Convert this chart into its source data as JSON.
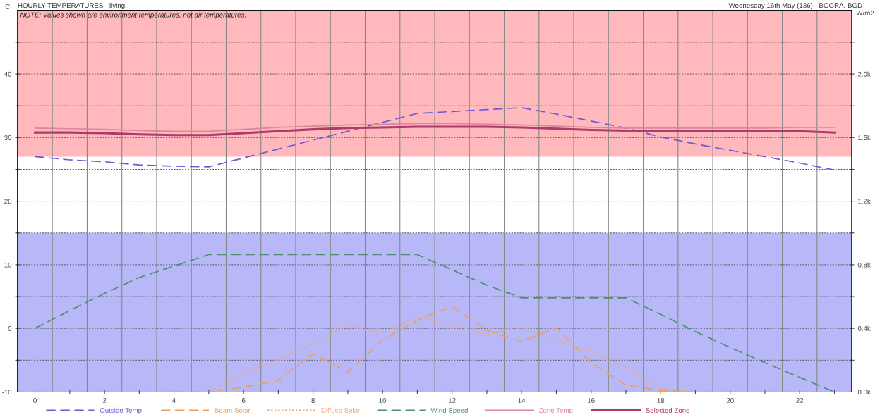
{
  "chart_data": {
    "type": "line",
    "title": "HOURLY TEMPERATURES - living",
    "subtitle": "Wednesday 16th May (136) - BOGRA, BGD",
    "ylabel": "C",
    "y2label": "W/m2",
    "annotations": [
      "NOTE: Values shown are environment temperatures, not air temperatures."
    ],
    "x": [
      0,
      1,
      2,
      3,
      4,
      5,
      6,
      7,
      8,
      9,
      10,
      11,
      12,
      13,
      14,
      15,
      16,
      17,
      18,
      19,
      20,
      21,
      22,
      23
    ],
    "xlim": [
      -0.5,
      23.5
    ],
    "xticks": [
      0,
      {
        "value": 1,
        "label": null
      },
      2,
      {
        "value": 3,
        "label": null
      },
      4,
      {
        "value": 5,
        "label": null
      },
      6,
      {
        "value": 7,
        "label": null
      },
      8,
      {
        "value": 9,
        "label": null
      },
      10,
      {
        "value": 11,
        "label": null
      },
      12,
      {
        "value": 13,
        "label": null
      },
      14,
      {
        "value": 15,
        "label": null
      },
      16,
      {
        "value": 17,
        "label": null
      },
      18,
      {
        "value": 19,
        "label": null
      },
      20,
      {
        "value": 21,
        "label": null
      },
      22,
      {
        "value": 23,
        "label": null
      }
    ],
    "ylim": [
      -10,
      50
    ],
    "yticks": [
      -10,
      {
        "value": -5,
        "label": null
      },
      0,
      {
        "value": 5,
        "label": null
      },
      10,
      {
        "value": 15,
        "label": null
      },
      20,
      {
        "value": 25,
        "label": null
      },
      30,
      {
        "value": 35,
        "label": null
      },
      40,
      {
        "value": 45,
        "label": null
      }
    ],
    "y2lim": [
      0,
      2400
    ],
    "y2ticks": [
      {
        "value": 0,
        "label": "0.0k"
      },
      {
        "value": 200,
        "label": null
      },
      {
        "value": 400,
        "label": "0.4k"
      },
      {
        "value": 600,
        "label": null
      },
      {
        "value": 800,
        "label": "0.8k"
      },
      {
        "value": 1000,
        "label": null
      },
      {
        "value": 1200,
        "label": "1.2k"
      },
      {
        "value": 1400,
        "label": null
      },
      {
        "value": 1600,
        "label": "1.6k"
      },
      {
        "value": 1800,
        "label": null
      },
      {
        "value": 2000,
        "label": "2.0k"
      },
      {
        "value": 2200,
        "label": null
      }
    ],
    "bands": [
      {
        "axis": "y",
        "from": 27,
        "to": 50,
        "color": "#ffb8bc"
      },
      {
        "axis": "y",
        "from": -10,
        "to": 15,
        "color": "#b8b8f8"
      }
    ],
    "grid": true,
    "legend": "bottom",
    "marker": "none",
    "series": [
      {
        "name": "Outside Temp.",
        "color": "#6a5ad0",
        "line_style": "dashed",
        "values": [
          27.0,
          26.5,
          26.2,
          25.7,
          25.5,
          25.4,
          26.8,
          28.2,
          29.6,
          31.0,
          32.4,
          33.8,
          34.1,
          34.4,
          34.7,
          33.7,
          32.6,
          31.5,
          30.1,
          29.0,
          28.0,
          27.0,
          26.0,
          24.9
        ]
      },
      {
        "name": "Beam Solar",
        "color": "#e8a060",
        "line_style": "dashed",
        "axis": "y2",
        "values": [
          0,
          0,
          0,
          0,
          0,
          0,
          30,
          74,
          240,
          126,
          326,
          452,
          539,
          387,
          317,
          404,
          183,
          43,
          9,
          0,
          0,
          0,
          0,
          0
        ]
      },
      {
        "name": "Diffuse Solar",
        "color": "#e8a878",
        "line_style": "dotted",
        "axis": "y2",
        "values": [
          0,
          0,
          0,
          0,
          0,
          0,
          117,
          204,
          304,
          422,
          370,
          474,
          422,
          361,
          404,
          317,
          257,
          157,
          22,
          0,
          0,
          0,
          0,
          0
        ]
      },
      {
        "name": "Wind Speed",
        "color": "#4a9070",
        "line_style": "dashed",
        "values": [
          0,
          2.8,
          5.5,
          8.0,
          9.8,
          11.6,
          11.6,
          11.6,
          11.6,
          11.6,
          11.6,
          11.6,
          9.2,
          6.8,
          4.8,
          4.8,
          4.8,
          4.8,
          2.2,
          -0.5,
          -3.0,
          -5.4,
          -7.7,
          -10.0
        ]
      },
      {
        "name": "Zone Temp.",
        "color": "#d88898",
        "line_style": "solid",
        "values": [
          31.5,
          31.4,
          31.3,
          31.1,
          31.0,
          31.0,
          31.3,
          31.6,
          31.8,
          32.0,
          32.1,
          32.2,
          32.2,
          32.1,
          32.0,
          31.8,
          31.6,
          31.5,
          31.5,
          31.5,
          31.5,
          31.5,
          31.6,
          31.6
        ]
      },
      {
        "name": "Selected Zone",
        "color": "#b03a6a",
        "line_style": "solid",
        "values": [
          30.8,
          30.8,
          30.7,
          30.5,
          30.4,
          30.4,
          30.7,
          31.0,
          31.3,
          31.5,
          31.6,
          31.7,
          31.7,
          31.7,
          31.6,
          31.4,
          31.2,
          31.1,
          31.0,
          31.0,
          31.0,
          31.0,
          31.0,
          30.8
        ]
      }
    ]
  }
}
